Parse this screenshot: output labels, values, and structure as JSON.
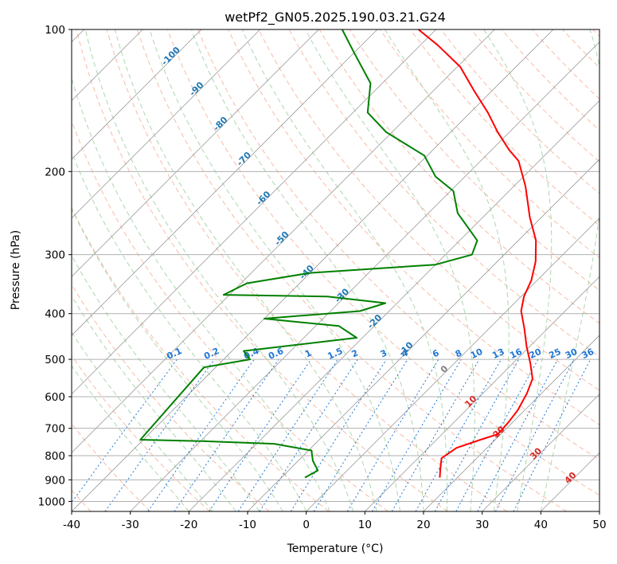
{
  "chart_data": {
    "type": "line",
    "title": "wetPf2_GN05.2025.190.03.21.G24",
    "xlabel": "Temperature (°C)",
    "ylabel": "Pressure (hPa)",
    "xlim": [
      -40,
      50
    ],
    "ylim": [
      1050,
      100
    ],
    "y_scale": "log",
    "x_ticks": [
      -40,
      -30,
      -20,
      -10,
      0,
      10,
      20,
      30,
      40,
      50
    ],
    "y_ticks": [
      100,
      200,
      300,
      400,
      500,
      600,
      700,
      800,
      900,
      1000
    ],
    "grid": true,
    "skew": "skew-T log-P",
    "background_lines": {
      "isotherms": "gray",
      "dry_adiabats": "light red dashed",
      "moist_adiabats": "light green dashed",
      "mixing_ratios": "blue dotted"
    },
    "mixing_ratio_labels": [
      "0.1",
      "0.2",
      "0.4",
      "0.6",
      "1",
      "1.5",
      "2",
      "3",
      "4",
      "6",
      "8",
      "10",
      "13",
      "16",
      "20",
      "25",
      "30",
      "36"
    ],
    "isotherm_labels_blue": [
      "-100",
      "-90",
      "-80",
      "-70",
      "-60",
      "-50",
      "-40",
      "-30",
      "-20",
      "-10"
    ],
    "isotherm_labels_red": [
      "0",
      "10",
      "20",
      "30",
      "40"
    ],
    "series": [
      {
        "name": "",
        "role": "temperature",
        "color": "#ff0000",
        "points": [
          [
            17.0,
            890
          ],
          [
            15.5,
            850
          ],
          [
            14.0,
            810
          ],
          [
            14.8,
            770
          ],
          [
            17.5,
            740
          ],
          [
            19.5,
            720
          ],
          [
            19.3,
            680
          ],
          [
            18.8,
            640
          ],
          [
            17.5,
            590
          ],
          [
            16.0,
            550
          ],
          [
            13.0,
            510
          ],
          [
            9.5,
            470
          ],
          [
            6.0,
            430
          ],
          [
            2.5,
            395
          ],
          [
            0.5,
            368
          ],
          [
            -1.0,
            340
          ],
          [
            -3.5,
            310
          ],
          [
            -7.0,
            280
          ],
          [
            -12.0,
            250
          ],
          [
            -18.0,
            215
          ],
          [
            -23.5,
            190
          ],
          [
            -27.0,
            180
          ],
          [
            -32.0,
            165
          ],
          [
            -37.0,
            150
          ],
          [
            -43.0,
            135
          ],
          [
            -49.5,
            120
          ],
          [
            -57.0,
            108
          ],
          [
            -63.0,
            100
          ]
        ]
      },
      {
        "name": "",
        "role": "dewpoint",
        "color": "#008000",
        "points": [
          [
            -6.0,
            890
          ],
          [
            -5.0,
            860
          ],
          [
            -7.5,
            820
          ],
          [
            -9.5,
            780
          ],
          [
            -17.0,
            755
          ],
          [
            -30.0,
            745
          ],
          [
            -40.5,
            740
          ],
          [
            -42.0,
            520
          ],
          [
            -35.5,
            500
          ],
          [
            -38.0,
            480
          ],
          [
            -21.0,
            450
          ],
          [
            -26.0,
            425
          ],
          [
            -40.0,
            410
          ],
          [
            -25.0,
            395
          ],
          [
            -22.0,
            380
          ],
          [
            -33.0,
            368
          ],
          [
            -51.0,
            365
          ],
          [
            -49.0,
            345
          ],
          [
            -40.0,
            328
          ],
          [
            -20.0,
            315
          ],
          [
            -15.5,
            300
          ],
          [
            -17.0,
            280
          ],
          [
            -25.0,
            245
          ],
          [
            -29.5,
            220
          ],
          [
            -35.0,
            205
          ],
          [
            -40.5,
            185
          ],
          [
            -51.0,
            165
          ],
          [
            -57.5,
            150
          ],
          [
            -62.0,
            130
          ],
          [
            -70.0,
            112
          ],
          [
            -76.0,
            100
          ]
        ]
      }
    ]
  },
  "colors": {
    "isotherm": "#9a9a9a",
    "dry_adiabat": "#f4a58a",
    "moist_adiabat": "#9fd09f",
    "mixing_ratio": "#1f77d4",
    "gridline": "#b0b0b0",
    "label_blue": "#1f77b4",
    "label_red": "#d62728",
    "label_gray": "#808080"
  }
}
